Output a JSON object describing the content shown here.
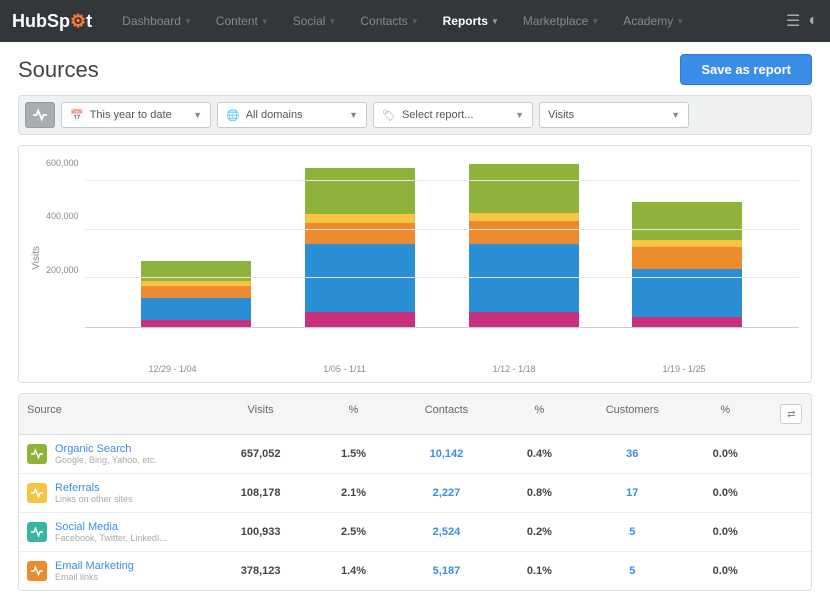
{
  "brand": {
    "part1": "Hub",
    "part2": "Sp",
    "part3": "t"
  },
  "nav": [
    {
      "label": "Dashboard",
      "active": false
    },
    {
      "label": "Content",
      "active": false
    },
    {
      "label": "Social",
      "active": false
    },
    {
      "label": "Contacts",
      "active": false
    },
    {
      "label": "Reports",
      "active": true
    },
    {
      "label": "Marketplace",
      "active": false
    },
    {
      "label": "Academy",
      "active": false
    }
  ],
  "page_title": "Sources",
  "save_button": "Save as report",
  "filters": {
    "date": "This year to date",
    "domains": "All domains",
    "report": "Select report...",
    "metric": "Visits"
  },
  "chart": {
    "y_label": "Visits",
    "y_max": 700000,
    "y_ticks": [
      "600,000",
      "400,000",
      "200,000"
    ],
    "grid_color": "#e8e8e8",
    "categories": [
      "12/29 - 1/04",
      "1/05 - 1/11",
      "1/12 - 1/18",
      "1/19 - 1/25"
    ],
    "series_colors": [
      "#c9317e",
      "#2a8fd4",
      "#ee8a2e",
      "#f5c542",
      "#8fb23a"
    ],
    "stacks": [
      [
        30000,
        90000,
        50000,
        20000,
        80000
      ],
      [
        60000,
        280000,
        90000,
        35000,
        190000
      ],
      [
        60000,
        280000,
        95000,
        35000,
        200000
      ],
      [
        40000,
        200000,
        90000,
        30000,
        155000
      ]
    ]
  },
  "table": {
    "headers": [
      "Source",
      "Visits",
      "%",
      "Contacts",
      "%",
      "Customers",
      "%"
    ],
    "rows": [
      {
        "icon_color": "#8fb23a",
        "name": "Organic Search",
        "sub": "Google, Bing, Yahoo, etc.",
        "visits": "657,052",
        "visits_pct": "1.5%",
        "contacts": "10,142",
        "contacts_pct": "0.4%",
        "customers": "36",
        "customers_pct": "0.0%"
      },
      {
        "icon_color": "#f5c542",
        "name": "Referrals",
        "sub": "Links on other sites",
        "visits": "108,178",
        "visits_pct": "2.1%",
        "contacts": "2,227",
        "contacts_pct": "0.8%",
        "customers": "17",
        "customers_pct": "0.0%"
      },
      {
        "icon_color": "#3ab5a0",
        "name": "Social Media",
        "sub": "Facebook, Twitter, LinkedI...",
        "visits": "100,933",
        "visits_pct": "2.5%",
        "contacts": "2,524",
        "contacts_pct": "0.2%",
        "customers": "5",
        "customers_pct": "0.0%"
      },
      {
        "icon_color": "#ee8a2e",
        "name": "Email Marketing",
        "sub": "Email links",
        "visits": "378,123",
        "visits_pct": "1.4%",
        "contacts": "5,187",
        "contacts_pct": "0.1%",
        "customers": "5",
        "customers_pct": "0.0%"
      }
    ]
  }
}
